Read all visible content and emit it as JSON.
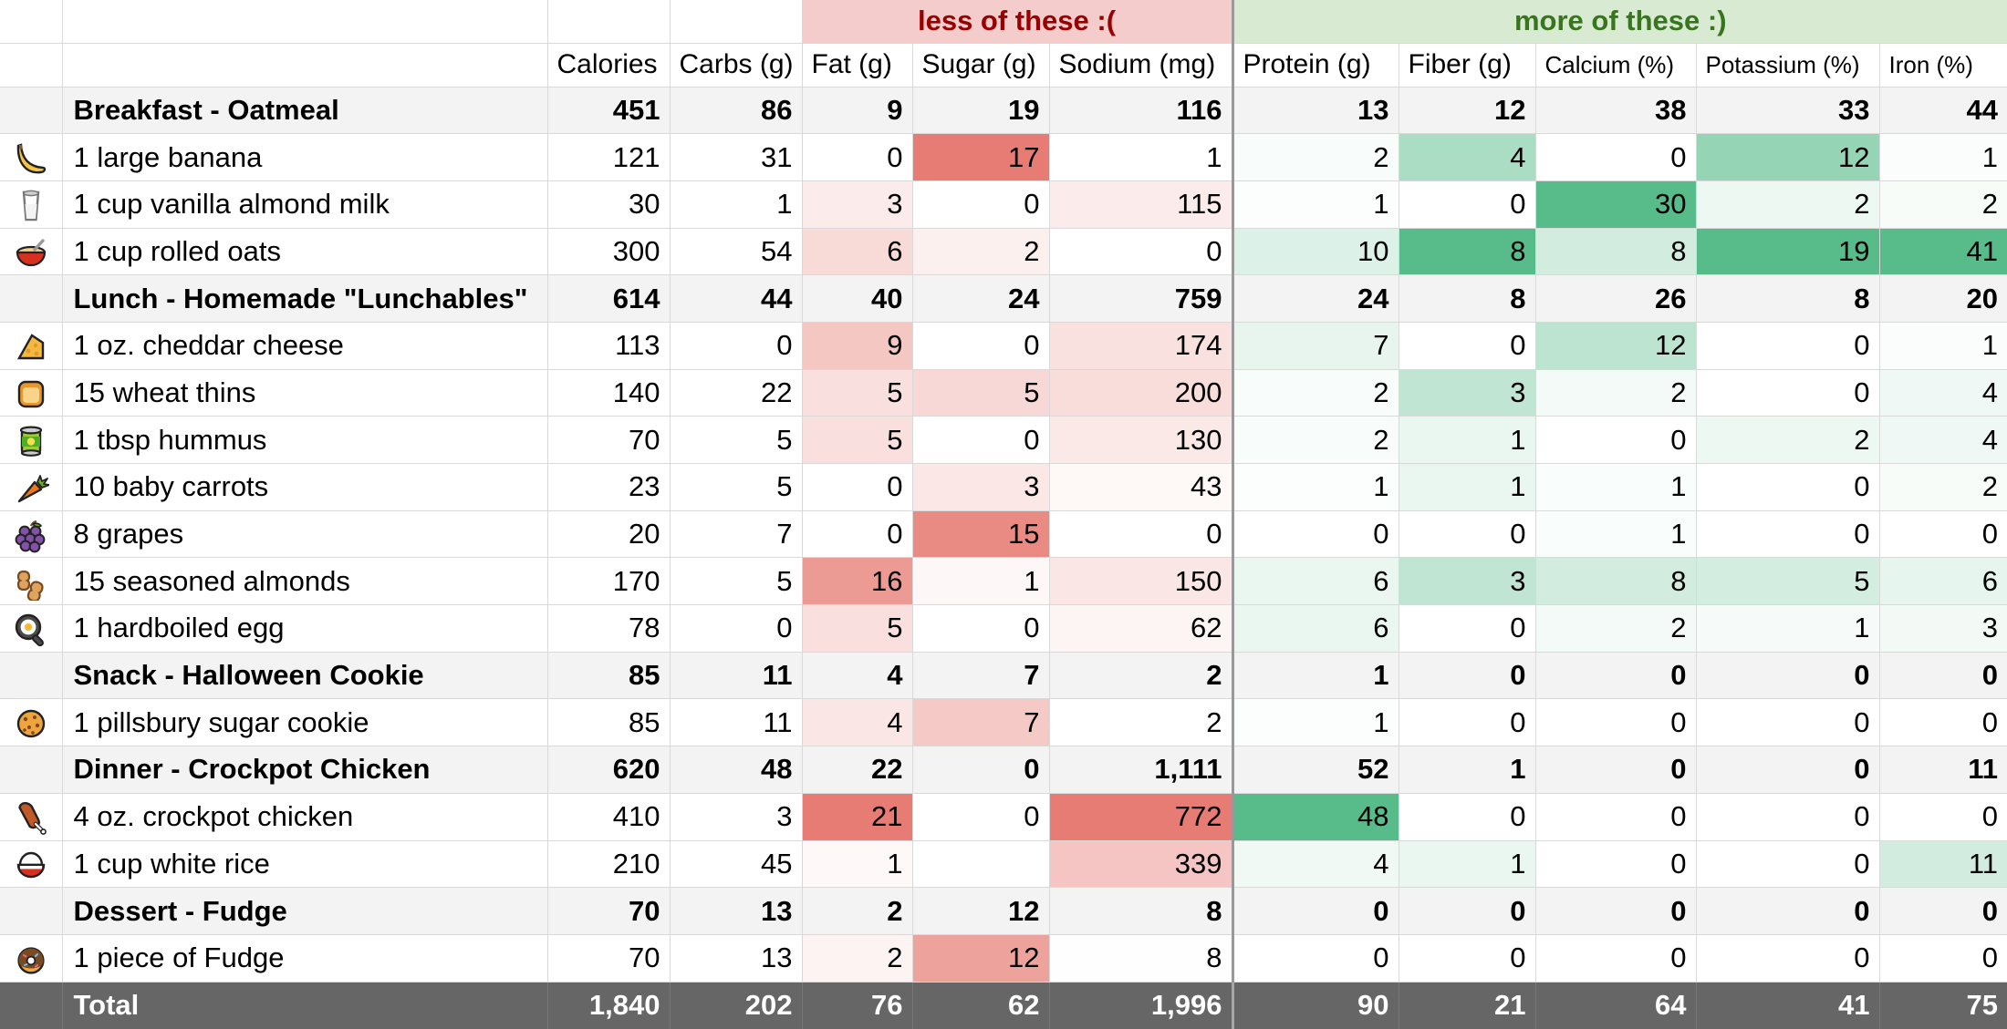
{
  "table": {
    "groups": {
      "less_label": "less of these :(",
      "more_label": "more of these :)"
    },
    "colors": {
      "less_band_bg": "#f4cccc",
      "less_text": "#990000",
      "more_band_bg": "#d9ead3",
      "more_text": "#38761d",
      "red_scale_max": "#e67c73",
      "green_scale_max": "#57bb8a",
      "section_row_bg": "#f3f3f3",
      "total_row_bg": "#666666",
      "gridline": "#d9d9d9",
      "group_separator": "#999999"
    },
    "columns": [
      {
        "key": "calories",
        "label": "Calories",
        "group": "none"
      },
      {
        "key": "carbs",
        "label": "Carbs (g)",
        "group": "none"
      },
      {
        "key": "fat",
        "label": "Fat (g)",
        "group": "less",
        "scale_max": 21
      },
      {
        "key": "sugar",
        "label": "Sugar (g)",
        "group": "less",
        "scale_max": 17
      },
      {
        "key": "sodium",
        "label": "Sodium (mg)",
        "group": "less",
        "scale_max": 772
      },
      {
        "key": "protein",
        "label": "Protein (g)",
        "group": "more",
        "scale_max": 48
      },
      {
        "key": "fiber",
        "label": "Fiber (g)",
        "group": "more",
        "scale_max": 8
      },
      {
        "key": "calcium",
        "label": "Calcium (%)",
        "group": "more",
        "scale_max": 30,
        "small": true
      },
      {
        "key": "potassium",
        "label": "Potassium (%)",
        "group": "more",
        "scale_max": 19,
        "small": true
      },
      {
        "key": "iron",
        "label": "Iron (%)",
        "group": "more",
        "scale_max": 41,
        "small": true
      }
    ],
    "rows": [
      {
        "type": "section",
        "label": "Breakfast - Oatmeal",
        "values": [
          "451",
          "86",
          "9",
          "19",
          "116",
          "13",
          "12",
          "38",
          "33",
          "44"
        ]
      },
      {
        "type": "item",
        "icon": "banana-icon",
        "label": "1 large banana",
        "values": [
          "121",
          "31",
          "0",
          "17",
          "1",
          "2",
          "4",
          "0",
          "12",
          "1"
        ]
      },
      {
        "type": "item",
        "icon": "milk-glass-icon",
        "label": "1 cup vanilla almond milk",
        "values": [
          "30",
          "1",
          "3",
          "0",
          "115",
          "1",
          "0",
          "30",
          "2",
          "2"
        ]
      },
      {
        "type": "item",
        "icon": "oatmeal-bowl-icon",
        "label": "1 cup rolled oats",
        "values": [
          "300",
          "54",
          "6",
          "2",
          "0",
          "10",
          "8",
          "8",
          "19",
          "41"
        ]
      },
      {
        "type": "section",
        "label": "Lunch - Homemade \"Lunchables\"",
        "values": [
          "614",
          "44",
          "40",
          "24",
          "759",
          "24",
          "8",
          "26",
          "8",
          "20"
        ]
      },
      {
        "type": "item",
        "icon": "cheese-icon",
        "label": "1 oz. cheddar cheese",
        "values": [
          "113",
          "0",
          "9",
          "0",
          "174",
          "7",
          "0",
          "12",
          "0",
          "1"
        ]
      },
      {
        "type": "item",
        "icon": "bread-slice-icon",
        "label": "15 wheat thins",
        "values": [
          "140",
          "22",
          "5",
          "5",
          "200",
          "2",
          "3",
          "2",
          "0",
          "4"
        ]
      },
      {
        "type": "item",
        "icon": "canned-food-icon",
        "label": "1 tbsp hummus",
        "values": [
          "70",
          "5",
          "5",
          "0",
          "130",
          "2",
          "1",
          "0",
          "2",
          "4"
        ]
      },
      {
        "type": "item",
        "icon": "carrot-icon",
        "label": "10 baby carrots",
        "values": [
          "23",
          "5",
          "0",
          "3",
          "43",
          "1",
          "1",
          "1",
          "0",
          "2"
        ]
      },
      {
        "type": "item",
        "icon": "grapes-icon",
        "label": "8 grapes",
        "values": [
          "20",
          "7",
          "0",
          "15",
          "0",
          "0",
          "0",
          "1",
          "0",
          "0"
        ]
      },
      {
        "type": "item",
        "icon": "peanuts-icon",
        "label": "15 seasoned almonds",
        "values": [
          "170",
          "5",
          "16",
          "1",
          "150",
          "6",
          "3",
          "8",
          "5",
          "6"
        ]
      },
      {
        "type": "item",
        "icon": "fried-egg-icon",
        "label": "1 hardboiled egg",
        "values": [
          "78",
          "0",
          "5",
          "0",
          "62",
          "6",
          "0",
          "2",
          "1",
          "3"
        ]
      },
      {
        "type": "section",
        "label": "Snack - Halloween Cookie",
        "values": [
          "85",
          "11",
          "4",
          "7",
          "2",
          "1",
          "0",
          "0",
          "0",
          "0"
        ]
      },
      {
        "type": "item",
        "icon": "cookie-icon",
        "label": "1 pillsbury sugar cookie",
        "values": [
          "85",
          "11",
          "4",
          "7",
          "2",
          "1",
          "0",
          "0",
          "0",
          "0"
        ]
      },
      {
        "type": "section",
        "label": "Dinner - Crockpot Chicken",
        "values": [
          "620",
          "48",
          "22",
          "0",
          "1,111",
          "52",
          "1",
          "0",
          "0",
          "11"
        ]
      },
      {
        "type": "item",
        "icon": "chicken-drumstick-icon",
        "label": "4 oz. crockpot chicken",
        "values": [
          "410",
          "3",
          "21",
          "0",
          "772",
          "48",
          "0",
          "0",
          "0",
          "0"
        ]
      },
      {
        "type": "item",
        "icon": "rice-bowl-icon",
        "label": "1 cup white rice",
        "values": [
          "210",
          "45",
          "1",
          "",
          "339",
          "4",
          "1",
          "0",
          "0",
          "11"
        ]
      },
      {
        "type": "section",
        "label": "Dessert - Fudge",
        "values": [
          "70",
          "13",
          "2",
          "12",
          "8",
          "0",
          "0",
          "0",
          "0",
          "0"
        ]
      },
      {
        "type": "item",
        "icon": "donut-icon",
        "label": "1 piece of Fudge",
        "values": [
          "70",
          "13",
          "2",
          "12",
          "8",
          "0",
          "0",
          "0",
          "0",
          "0"
        ]
      },
      {
        "type": "total",
        "label": "Total",
        "values": [
          "1,840",
          "202",
          "76",
          "62",
          "1,996",
          "90",
          "21",
          "64",
          "41",
          "75"
        ]
      }
    ]
  }
}
